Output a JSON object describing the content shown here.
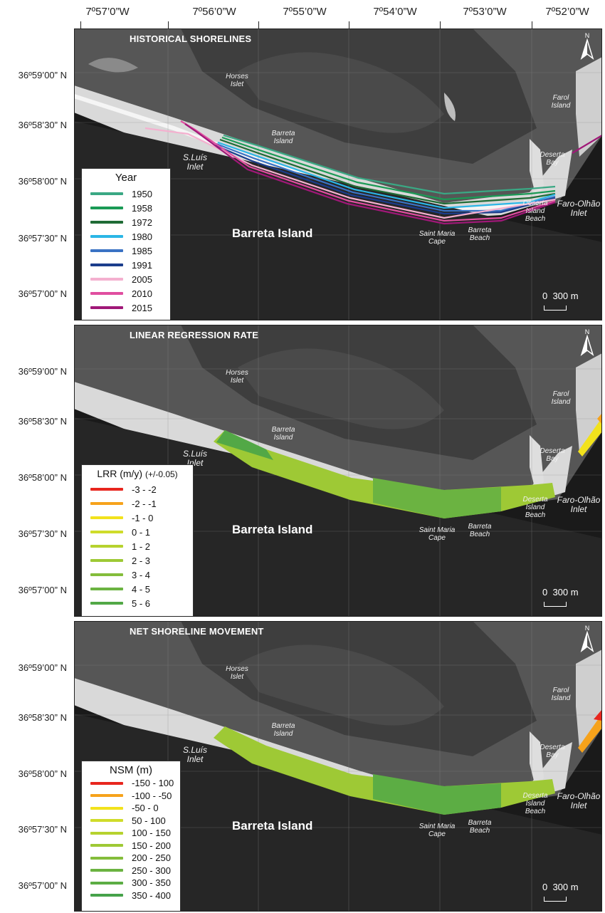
{
  "longitude_labels": [
    "7º57’0”W",
    "7º56’0”W",
    "7º55’0”W",
    "7º54’0”W",
    "7º53’0”W",
    "7º52’0”W"
  ],
  "latitude_labels": [
    "36º59’00” N",
    "36º58’30” N",
    "36º58’00” N",
    "36º57’30” N",
    "36º57’00” N"
  ],
  "places": {
    "horses_islet": "Horses Islet",
    "barreta_island_small": "Barreta Island",
    "sluis_inlet": "S.Luís Inlet",
    "farol_island": "Farol Island",
    "deserta_bay": "Deserta Bay",
    "deserta_island_beach": "Deserta Island Beach",
    "faro_olhao_inlet": "Faro-Olhão Inlet",
    "saint_maria_cape": "Saint Maria Cape",
    "barreta_beach": "Barreta Beach",
    "barreta_island_big": "Barreta Island"
  },
  "north_label": "N",
  "scale_label": "0  300 m",
  "panels": [
    {
      "title": "HISTORICAL SHORELINES",
      "legend_title": "Year",
      "legend": [
        {
          "label": "1950",
          "color": "#3aa884"
        },
        {
          "label": "1958",
          "color": "#1a9a55"
        },
        {
          "label": "1972",
          "color": "#1f6b35"
        },
        {
          "label": "1980",
          "color": "#2bb6e6"
        },
        {
          "label": "1985",
          "color": "#3a72c4"
        },
        {
          "label": "1991",
          "color": "#1b3d8c"
        },
        {
          "label": "2005",
          "color": "#f4b0cf"
        },
        {
          "label": "2010",
          "color": "#e04ea0"
        },
        {
          "label": "2015",
          "color": "#a01878"
        }
      ]
    },
    {
      "title": "LINEAR REGRESSION RATE",
      "legend_title": "LRR (m/y)",
      "legend_note": "(+/-0.05)",
      "legend": [
        {
          "label": "-3 - -2",
          "color": "#e8261e"
        },
        {
          "label": "-2 - -1",
          "color": "#f6a21b"
        },
        {
          "label": "-1 - 0",
          "color": "#f2e21c"
        },
        {
          "label": "0 - 1",
          "color": "#cfdc2a"
        },
        {
          "label": "1 - 2",
          "color": "#b6d22e"
        },
        {
          "label": "2 - 3",
          "color": "#9ec935"
        },
        {
          "label": "3 - 4",
          "color": "#84bd3b"
        },
        {
          "label": "4 - 5",
          "color": "#6bb341"
        },
        {
          "label": "5 - 6",
          "color": "#52a846"
        }
      ]
    },
    {
      "title": "NET SHORELINE MOVEMENT",
      "legend_title": "NSM (m)",
      "legend": [
        {
          "label": "-150 - 100",
          "color": "#e8261e"
        },
        {
          "label": "-100 - -50",
          "color": "#f6a21b"
        },
        {
          "label": "-50 - 0",
          "color": "#f2e21c"
        },
        {
          "label": "50 - 100",
          "color": "#cfdc2a"
        },
        {
          "label": "100 - 150",
          "color": "#b6d22e"
        },
        {
          "label": "150 - 200",
          "color": "#9ec935"
        },
        {
          "label": "200 - 250",
          "color": "#84bd3b"
        },
        {
          "label": "250 - 300",
          "color": "#6bb341"
        },
        {
          "label": "300 - 350",
          "color": "#5cad44"
        },
        {
          "label": "350 - 400",
          "color": "#46a24a"
        }
      ]
    }
  ]
}
